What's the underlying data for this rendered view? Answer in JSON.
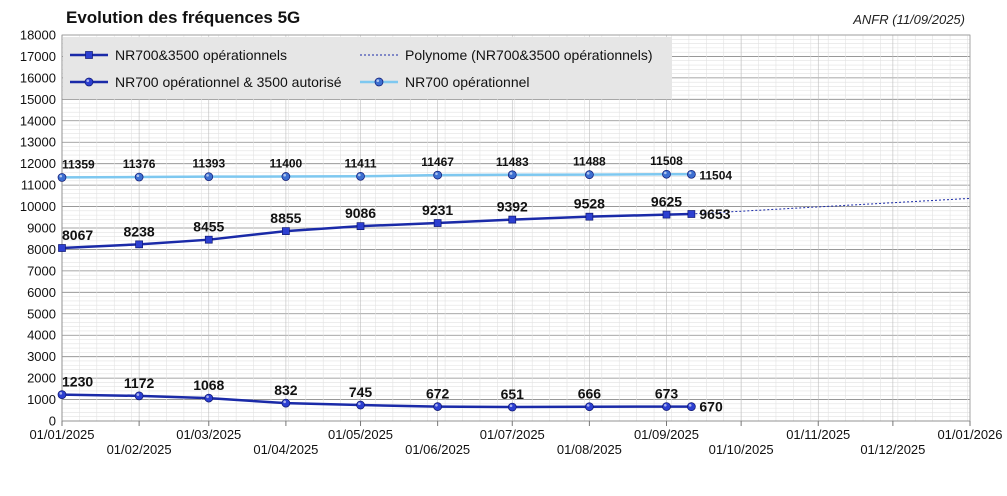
{
  "chart_data": {
    "type": "line",
    "title": "Evolution des fréquences 5G",
    "source": "ANFR (11/09/2025)",
    "ylim": [
      0,
      18000
    ],
    "ytick_step": 1000,
    "x_start": "2025-01-01",
    "x_end": "2026-01-01",
    "x_ticks": [
      "01/01/2025",
      "01/02/2025",
      "01/03/2025",
      "01/04/2025",
      "01/05/2025",
      "01/06/2025",
      "01/07/2025",
      "01/08/2025",
      "01/09/2025",
      "01/10/2025",
      "01/11/2025",
      "01/12/2025",
      "01/01/2026"
    ],
    "x": [
      "2025-01-01",
      "2025-02-01",
      "2025-03-01",
      "2025-04-01",
      "2025-05-01",
      "2025-06-01",
      "2025-07-01",
      "2025-08-01",
      "2025-09-01",
      "2025-09-11"
    ],
    "legend_position": "top-left",
    "grid": true,
    "series": [
      {
        "name": "NR700&3500 opérationnels",
        "color": "#1a2aa8",
        "marker": "square",
        "width": 2.5,
        "values": [
          8067,
          8238,
          8455,
          8855,
          9086,
          9231,
          9392,
          9528,
          9625,
          9653
        ]
      },
      {
        "name": "Polynome (NR700&3500 opérationnels)",
        "color": "#1a2aa8",
        "dashed": true,
        "trend": true,
        "x": [
          "2025-09-11",
          "2026-01-01"
        ],
        "values": [
          9653,
          10380
        ]
      },
      {
        "name": "NR700 opérationnel & 3500 autorisé",
        "color": "#1a2aa8",
        "marker": "circle",
        "width": 2.5,
        "values": [
          1230,
          1172,
          1068,
          832,
          745,
          672,
          651,
          666,
          673,
          670
        ]
      },
      {
        "name": "NR700 opérationnel",
        "color": "#7ec8f0",
        "marker": "circle",
        "width": 2.5,
        "values": [
          11359,
          11376,
          11393,
          11400,
          11411,
          11467,
          11483,
          11488,
          11508,
          11504
        ]
      }
    ]
  }
}
